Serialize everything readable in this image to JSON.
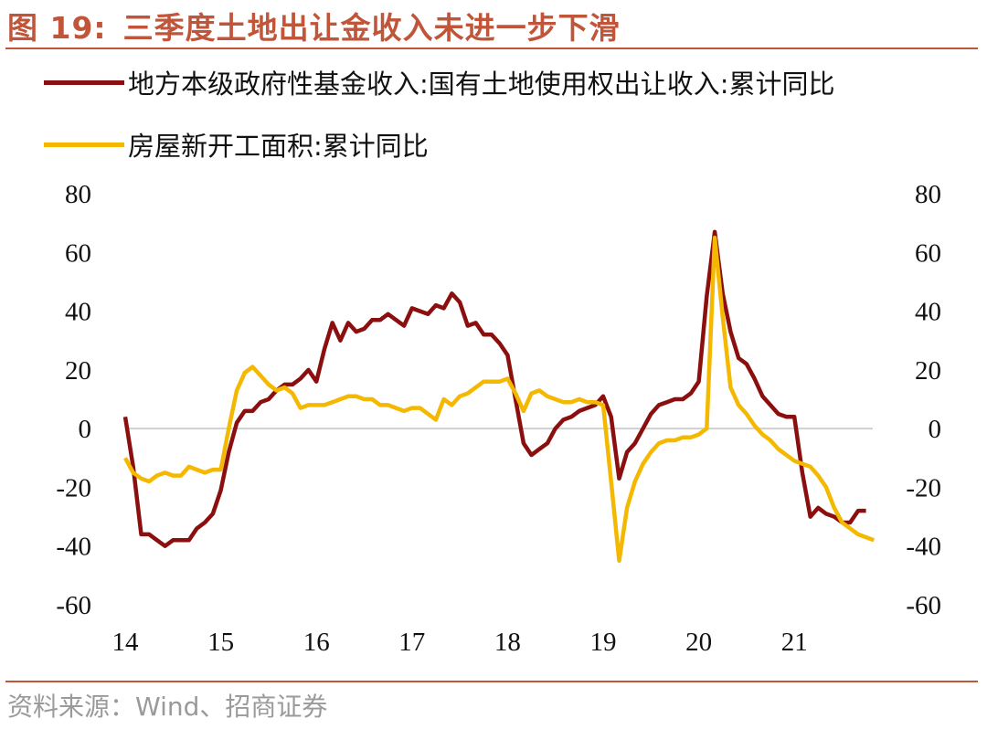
{
  "figure": {
    "number": "图 19:",
    "title": "三季度土地出让金收入未进一步下滑",
    "source": "资料来源：Wind、招商证券"
  },
  "colors": {
    "accent": "#c0553a",
    "series_1": "#8b0f0f",
    "series_2": "#f5b800",
    "zero_line": "#d0d0d0"
  },
  "chart_data": {
    "type": "line",
    "x_ticks": [
      "14",
      "15",
      "16",
      "17",
      "18",
      "19",
      "20",
      "21"
    ],
    "y_ticks": [
      "80",
      "60",
      "40",
      "20",
      "0",
      "-20",
      "-40",
      "-60"
    ],
    "ylim": [
      -60,
      80
    ],
    "y2lim": [
      -60,
      80
    ],
    "xlim": [
      14,
      21.9
    ],
    "grid": false,
    "zero_line": true,
    "legend_position": "top",
    "series": [
      {
        "name": "地方本级政府性基金收入:国有土地使用权出让收入:累计同比",
        "axis": "left",
        "points": [
          [
            14.0,
            4
          ],
          [
            14.083,
            -13
          ],
          [
            14.167,
            -36
          ],
          [
            14.25,
            -36
          ],
          [
            14.333,
            -38
          ],
          [
            14.417,
            -40
          ],
          [
            14.5,
            -38
          ],
          [
            14.583,
            -38
          ],
          [
            14.667,
            -38
          ],
          [
            14.75,
            -34
          ],
          [
            14.833,
            -32
          ],
          [
            14.917,
            -29
          ],
          [
            15.0,
            -21
          ],
          [
            15.083,
            -8
          ],
          [
            15.167,
            2
          ],
          [
            15.25,
            6
          ],
          [
            15.333,
            6
          ],
          [
            15.417,
            9
          ],
          [
            15.5,
            10
          ],
          [
            15.583,
            13
          ],
          [
            15.667,
            15
          ],
          [
            15.75,
            15
          ],
          [
            15.833,
            17
          ],
          [
            15.917,
            20
          ],
          [
            16.0,
            16
          ],
          [
            16.083,
            27
          ],
          [
            16.167,
            36
          ],
          [
            16.25,
            30
          ],
          [
            16.333,
            36
          ],
          [
            16.417,
            33
          ],
          [
            16.5,
            34
          ],
          [
            16.583,
            37
          ],
          [
            16.667,
            37
          ],
          [
            16.75,
            39
          ],
          [
            16.833,
            37
          ],
          [
            16.917,
            35
          ],
          [
            17.0,
            41
          ],
          [
            17.083,
            40
          ],
          [
            17.167,
            39
          ],
          [
            17.25,
            42
          ],
          [
            17.333,
            41
          ],
          [
            17.417,
            46
          ],
          [
            17.5,
            43
          ],
          [
            17.583,
            35
          ],
          [
            17.667,
            36
          ],
          [
            17.75,
            32
          ],
          [
            17.833,
            32
          ],
          [
            17.917,
            29
          ],
          [
            18.0,
            25
          ],
          [
            18.083,
            10
          ],
          [
            18.167,
            -5
          ],
          [
            18.25,
            -9
          ],
          [
            18.333,
            -7
          ],
          [
            18.417,
            -5
          ],
          [
            18.5,
            0
          ],
          [
            18.583,
            3
          ],
          [
            18.667,
            4
          ],
          [
            18.75,
            6
          ],
          [
            18.833,
            7
          ],
          [
            18.917,
            8
          ],
          [
            19.0,
            11
          ],
          [
            19.083,
            4
          ],
          [
            19.167,
            -17
          ],
          [
            19.25,
            -8
          ],
          [
            19.333,
            -5
          ],
          [
            19.417,
            0
          ],
          [
            19.5,
            5
          ],
          [
            19.583,
            8
          ],
          [
            19.667,
            9
          ],
          [
            19.75,
            10
          ],
          [
            19.833,
            10
          ],
          [
            19.917,
            12
          ],
          [
            20.0,
            16
          ],
          [
            20.083,
            45
          ],
          [
            20.167,
            67
          ],
          [
            20.25,
            46
          ],
          [
            20.333,
            33
          ],
          [
            20.417,
            24
          ],
          [
            20.5,
            22
          ],
          [
            20.583,
            17
          ],
          [
            20.667,
            11
          ],
          [
            20.75,
            8
          ],
          [
            20.833,
            5
          ],
          [
            20.917,
            4
          ],
          [
            21.0,
            4
          ],
          [
            21.083,
            -15
          ],
          [
            21.167,
            -30
          ],
          [
            21.25,
            -27
          ],
          [
            21.333,
            -29
          ],
          [
            21.417,
            -30
          ],
          [
            21.5,
            -32
          ],
          [
            21.583,
            -32
          ],
          [
            21.667,
            -28
          ],
          [
            21.75,
            -28
          ]
        ]
      },
      {
        "name": "房屋新开工面积:累计同比",
        "axis": "right",
        "points": [
          [
            14.0,
            -10
          ],
          [
            14.083,
            -15
          ],
          [
            14.167,
            -17
          ],
          [
            14.25,
            -18
          ],
          [
            14.333,
            -16
          ],
          [
            14.417,
            -15
          ],
          [
            14.5,
            -16
          ],
          [
            14.583,
            -16
          ],
          [
            14.667,
            -13
          ],
          [
            14.75,
            -14
          ],
          [
            14.833,
            -15
          ],
          [
            14.917,
            -14
          ],
          [
            15.0,
            -14
          ],
          [
            15.083,
            0
          ],
          [
            15.167,
            13
          ],
          [
            15.25,
            19
          ],
          [
            15.333,
            21
          ],
          [
            15.417,
            18
          ],
          [
            15.5,
            15
          ],
          [
            15.583,
            13
          ],
          [
            15.667,
            14
          ],
          [
            15.75,
            12
          ],
          [
            15.833,
            7
          ],
          [
            15.917,
            8
          ],
          [
            16.0,
            8
          ],
          [
            16.083,
            8
          ],
          [
            16.167,
            9
          ],
          [
            16.25,
            10
          ],
          [
            16.333,
            11
          ],
          [
            16.417,
            11
          ],
          [
            16.5,
            10
          ],
          [
            16.583,
            10
          ],
          [
            16.667,
            8
          ],
          [
            16.75,
            8
          ],
          [
            16.833,
            7
          ],
          [
            16.917,
            6
          ],
          [
            17.0,
            7
          ],
          [
            17.083,
            7
          ],
          [
            17.167,
            5
          ],
          [
            17.25,
            3
          ],
          [
            17.333,
            10
          ],
          [
            17.417,
            8
          ],
          [
            17.5,
            11
          ],
          [
            17.583,
            12
          ],
          [
            17.667,
            14
          ],
          [
            17.75,
            16
          ],
          [
            17.833,
            16
          ],
          [
            17.917,
            16
          ],
          [
            18.0,
            17
          ],
          [
            18.083,
            12
          ],
          [
            18.167,
            6
          ],
          [
            18.25,
            12
          ],
          [
            18.333,
            13
          ],
          [
            18.417,
            11
          ],
          [
            18.5,
            10
          ],
          [
            18.583,
            9
          ],
          [
            18.667,
            9
          ],
          [
            18.75,
            10
          ],
          [
            18.833,
            9
          ],
          [
            18.917,
            9
          ],
          [
            19.0,
            8
          ],
          [
            19.083,
            -18
          ],
          [
            19.167,
            -45
          ],
          [
            19.25,
            -27
          ],
          [
            19.333,
            -18
          ],
          [
            19.417,
            -12
          ],
          [
            19.5,
            -8
          ],
          [
            19.583,
            -5
          ],
          [
            19.667,
            -4
          ],
          [
            19.75,
            -4
          ],
          [
            19.833,
            -3
          ],
          [
            19.917,
            -3
          ],
          [
            20.0,
            -2
          ],
          [
            20.083,
            0
          ],
          [
            20.167,
            65
          ],
          [
            20.25,
            38
          ],
          [
            20.333,
            14
          ],
          [
            20.417,
            8
          ],
          [
            20.5,
            5
          ],
          [
            20.583,
            1
          ],
          [
            20.667,
            -2
          ],
          [
            20.75,
            -4
          ],
          [
            20.833,
            -7
          ],
          [
            20.917,
            -9
          ],
          [
            21.0,
            -11
          ],
          [
            21.083,
            -12
          ],
          [
            21.167,
            -13
          ],
          [
            21.25,
            -16
          ],
          [
            21.333,
            -20
          ],
          [
            21.417,
            -27
          ],
          [
            21.5,
            -32
          ],
          [
            21.583,
            -34
          ],
          [
            21.667,
            -36
          ],
          [
            21.75,
            -37
          ],
          [
            21.833,
            -38
          ]
        ]
      }
    ]
  }
}
